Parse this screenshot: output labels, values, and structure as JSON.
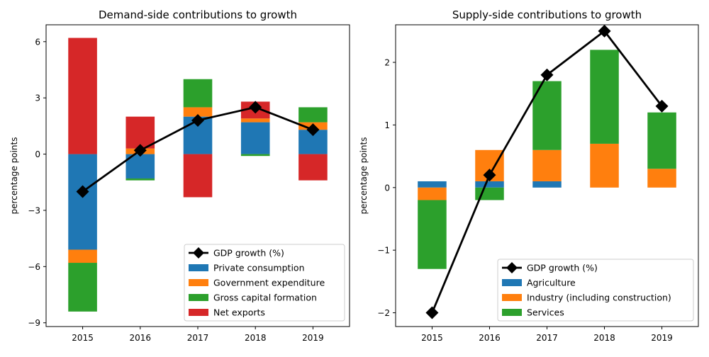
{
  "chart_data": [
    {
      "type": "bar",
      "stacked": true,
      "title": "Demand-side contributions to growth",
      "xlabel": "",
      "ylabel": "percentage points",
      "categories": [
        "2015",
        "2016",
        "2017",
        "2018",
        "2019"
      ],
      "ylim": [
        -9.2,
        6.9
      ],
      "yticks": [
        -9,
        -6,
        -3,
        0,
        3,
        6
      ],
      "ytick_labels": [
        "−9",
        "−6",
        "−3",
        "0",
        "3",
        "6"
      ],
      "series": [
        {
          "name": "Private consumption",
          "color": "#1f77b4",
          "values": [
            -5.1,
            -1.3,
            2.0,
            1.7,
            1.3
          ]
        },
        {
          "name": "Government expenditure",
          "color": "#ff7f0e",
          "values": [
            -0.7,
            0.3,
            0.5,
            0.2,
            0.4
          ]
        },
        {
          "name": "Gross capital formation",
          "color": "#2ca02c",
          "values": [
            -2.6,
            -0.1,
            1.5,
            -0.1,
            0.8
          ]
        },
        {
          "name": "Net exports",
          "color": "#d62728",
          "values": [
            6.2,
            1.7,
            -2.3,
            0.9,
            -1.4
          ]
        }
      ],
      "line": {
        "name": "GDP growth (%)",
        "color": "#000000",
        "values": [
          -2.0,
          0.2,
          1.8,
          2.5,
          1.3
        ]
      },
      "legend": "lower-right",
      "grid": false
    },
    {
      "type": "bar",
      "stacked": true,
      "title": "Supply-side contributions to growth",
      "xlabel": "",
      "ylabel": "percentage points",
      "categories": [
        "2015",
        "2016",
        "2017",
        "2018",
        "2019"
      ],
      "ylim": [
        -2.22,
        2.6
      ],
      "yticks": [
        -2,
        -1,
        0,
        1,
        2
      ],
      "ytick_labels": [
        "−2",
        "−1",
        "0",
        "1",
        "2"
      ],
      "series": [
        {
          "name": "Agriculture",
          "color": "#1f77b4",
          "values": [
            0.1,
            0.1,
            0.1,
            0.0,
            0.0
          ]
        },
        {
          "name": "Industry (including construction)",
          "color": "#ff7f0e",
          "values": [
            -0.2,
            0.5,
            0.5,
            0.7,
            0.3
          ]
        },
        {
          "name": "Services",
          "color": "#2ca02c",
          "values": [
            -1.1,
            -0.2,
            1.1,
            1.5,
            0.9
          ]
        }
      ],
      "line": {
        "name": "GDP growth (%)",
        "color": "#000000",
        "values": [
          -2.0,
          0.2,
          1.8,
          2.5,
          1.3
        ]
      },
      "legend": "lower-right",
      "grid": false
    }
  ]
}
